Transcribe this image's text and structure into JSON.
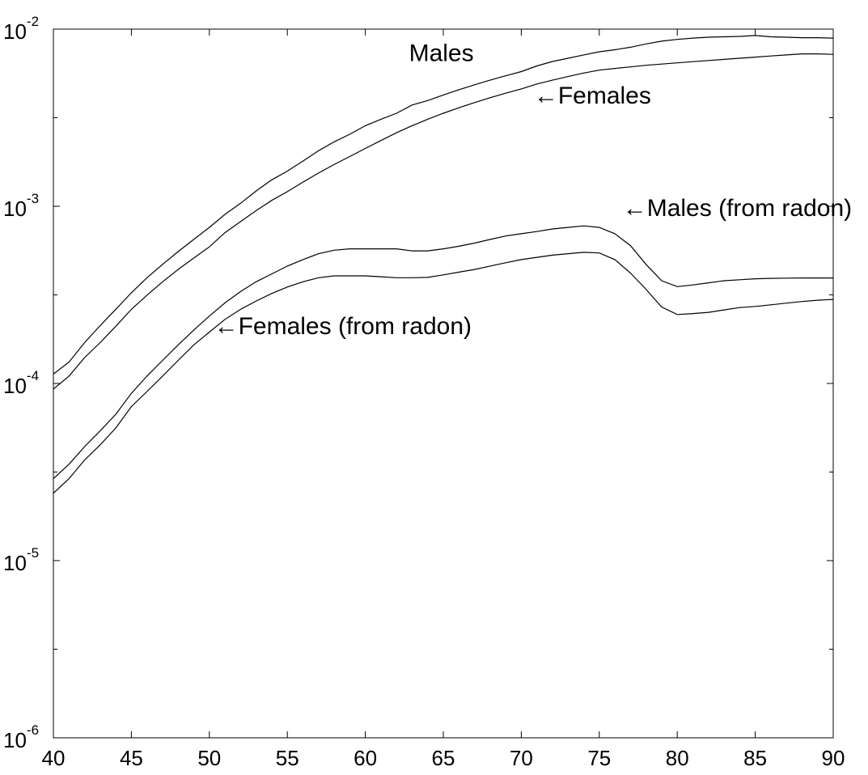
{
  "chart_data": {
    "type": "line",
    "title": "",
    "xlabel": "",
    "ylabel": "",
    "xlim": [
      40,
      90
    ],
    "ylim": [
      1e-06,
      0.01
    ],
    "yscale": "log",
    "grid": false,
    "x_ticks": [
      40,
      45,
      50,
      55,
      60,
      65,
      70,
      75,
      80,
      85,
      90
    ],
    "x_tick_labels": [
      "40",
      "45",
      "50",
      "55",
      "60",
      "65",
      "70",
      "75",
      "80",
      "85",
      "90"
    ],
    "y_ticks": [
      {
        "value": 1e-06,
        "base": "10",
        "exp": "-6"
      },
      {
        "value": 1e-05,
        "base": "10",
        "exp": "-5"
      },
      {
        "value": 0.0001,
        "base": "10",
        "exp": "-4"
      },
      {
        "value": 0.001,
        "base": "10",
        "exp": "-3"
      },
      {
        "value": 0.01,
        "base": "10",
        "exp": "-2"
      }
    ],
    "series": [
      {
        "name": "Males",
        "color": "#000000",
        "x": [
          40,
          41,
          42,
          43,
          44,
          45,
          46,
          47,
          48,
          49,
          50,
          51,
          52,
          53,
          54,
          55,
          56,
          57,
          58,
          59,
          60,
          61,
          62,
          63,
          64,
          65,
          66,
          67,
          68,
          69,
          70,
          71,
          72,
          73,
          74,
          75,
          76,
          77,
          78,
          79,
          80,
          81,
          82,
          83,
          84,
          85,
          86,
          87,
          88,
          89,
          90
        ],
        "y": [
          0.000113,
          0.000132,
          0.00017,
          0.000212,
          0.000262,
          0.000325,
          0.000395,
          0.00047,
          0.000555,
          0.00065,
          0.00076,
          0.0009,
          0.00104,
          0.00122,
          0.00141,
          0.00158,
          0.0018,
          0.00206,
          0.00231,
          0.00255,
          0.00285,
          0.0031,
          0.00335,
          0.00373,
          0.00395,
          0.00425,
          0.00455,
          0.00485,
          0.00515,
          0.00545,
          0.00576,
          0.0062,
          0.00657,
          0.00685,
          0.00715,
          0.00745,
          0.00765,
          0.0079,
          0.00825,
          0.00855,
          0.00875,
          0.0089,
          0.009,
          0.00905,
          0.0091,
          0.0092,
          0.00905,
          0.009,
          0.00895,
          0.00895,
          0.0089
        ]
      },
      {
        "name": "Females",
        "color": "#000000",
        "x": [
          40,
          41,
          42,
          43,
          44,
          45,
          46,
          47,
          48,
          49,
          50,
          51,
          52,
          53,
          54,
          55,
          56,
          57,
          58,
          59,
          60,
          61,
          62,
          63,
          64,
          65,
          66,
          67,
          68,
          69,
          70,
          71,
          72,
          73,
          74,
          75,
          76,
          77,
          78,
          79,
          80,
          81,
          82,
          83,
          84,
          85,
          86,
          87,
          88,
          89,
          90
        ],
        "y": [
          9.3e-05,
          0.00011,
          0.00014,
          0.00017,
          0.00021,
          0.000262,
          0.000315,
          0.000375,
          0.00044,
          0.00051,
          0.00059,
          0.00071,
          0.00082,
          0.000945,
          0.00108,
          0.00121,
          0.00137,
          0.00154,
          0.00172,
          0.00191,
          0.00212,
          0.00235,
          0.0026,
          0.00285,
          0.0031,
          0.00335,
          0.0036,
          0.00385,
          0.0041,
          0.00435,
          0.0046,
          0.0049,
          0.00515,
          0.0054,
          0.00565,
          0.00587,
          0.006,
          0.00612,
          0.00625,
          0.00635,
          0.00645,
          0.00655,
          0.00665,
          0.00675,
          0.00685,
          0.00695,
          0.00705,
          0.00715,
          0.00725,
          0.00725,
          0.0072
        ]
      },
      {
        "name": "Males (from radon)",
        "color": "#000000",
        "x": [
          40,
          41,
          42,
          43,
          44,
          45,
          46,
          47,
          48,
          49,
          50,
          51,
          52,
          53,
          54,
          55,
          56,
          57,
          58,
          59,
          60,
          61,
          62,
          63,
          64,
          65,
          66,
          67,
          68,
          69,
          70,
          71,
          72,
          73,
          74,
          75,
          76,
          77,
          78,
          79,
          80,
          81,
          82,
          83,
          84,
          85,
          86,
          87,
          88,
          89,
          90
        ],
        "y": [
          2.9e-05,
          3.5e-05,
          4.4e-05,
          5.4e-05,
          6.7e-05,
          8.8e-05,
          0.00011,
          0.000135,
          0.000165,
          0.0002,
          0.00024,
          0.000285,
          0.00033,
          0.000375,
          0.000415,
          0.00046,
          0.0005,
          0.00054,
          0.000565,
          0.000575,
          0.000575,
          0.000575,
          0.000575,
          0.00056,
          0.00056,
          0.000575,
          0.000595,
          0.00062,
          0.00065,
          0.00068,
          0.0007,
          0.00072,
          0.000745,
          0.00076,
          0.000775,
          0.00076,
          0.0007,
          0.0006,
          0.00047,
          0.00038,
          0.000352,
          0.00036,
          0.00037,
          0.00038,
          0.000385,
          0.00039,
          0.000392,
          0.000393,
          0.000394,
          0.000394,
          0.000394
        ]
      },
      {
        "name": "Females (from radon)",
        "color": "#000000",
        "x": [
          40,
          41,
          42,
          43,
          44,
          45,
          46,
          47,
          48,
          49,
          50,
          51,
          52,
          53,
          54,
          55,
          56,
          57,
          58,
          59,
          60,
          61,
          62,
          63,
          64,
          65,
          66,
          67,
          68,
          69,
          70,
          71,
          72,
          73,
          74,
          75,
          76,
          77,
          78,
          79,
          80,
          81,
          82,
          83,
          84,
          85,
          86,
          87,
          88,
          89,
          90
        ],
        "y": [
          2.4e-05,
          2.9e-05,
          3.7e-05,
          4.5e-05,
          5.6e-05,
          7.4e-05,
          9e-05,
          0.00011,
          0.000135,
          0.000165,
          0.000195,
          0.00023,
          0.000262,
          0.000292,
          0.000322,
          0.00035,
          0.000375,
          0.000395,
          0.000405,
          0.000405,
          0.000405,
          0.0004,
          0.000395,
          0.000395,
          0.000397,
          0.00041,
          0.000425,
          0.00044,
          0.00046,
          0.00048,
          0.0005,
          0.000515,
          0.00053,
          0.00054,
          0.00055,
          0.000545,
          0.0005,
          0.00042,
          0.00034,
          0.00027,
          0.000245,
          0.000248,
          0.000252,
          0.00026,
          0.000268,
          0.000272,
          0.000278,
          0.000284,
          0.00029,
          0.000295,
          0.000298
        ]
      }
    ],
    "annotations": [
      {
        "text": "Males",
        "x": 62.8,
        "y": 0.0066
      },
      {
        "text": "←Females",
        "x": 70.8,
        "y": 0.0038
      },
      {
        "text": "←Males (from radon)",
        "x": 76.5,
        "y": 0.00088
      },
      {
        "text": "←Females (from radon)",
        "x": 50.3,
        "y": 0.00019
      }
    ]
  }
}
